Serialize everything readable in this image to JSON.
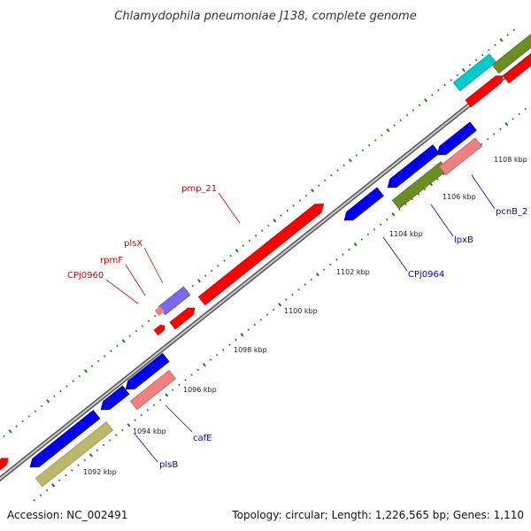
{
  "title": "Chlamydophila pneumoniae J138, complete genome",
  "footer": {
    "accession": "Accession: NC_002491",
    "summary": "Topology: circular; Length: 1,226,565 bp; Genes: 1,110"
  },
  "ticks": [
    "1092 kbp",
    "1094 kbp",
    "1096 kbp",
    "1098 kbp",
    "1100 kbp",
    "1102 kbp",
    "1104 kbp",
    "1106 kbp",
    "1108 kbp"
  ],
  "genes": {
    "pmp_21": "pmp_21",
    "plsX": "plsX",
    "rpmF": "rpmF",
    "CPj0960": "CPj0960",
    "cafE": "cafE",
    "plsB": "plsB",
    "CPj0964": "CPj0964",
    "lpxB": "lpxB",
    "pcnB_2": "pcnB_2"
  },
  "colors": {
    "red": "#ff0000",
    "blue": "#0000ee",
    "pink": "#f08080",
    "olive": "#6b8e23",
    "khaki": "#bdb76b",
    "cyan": "#00cccc",
    "purple": "#7b68ee",
    "label_red": "#cc0000",
    "label_blue": "#0000cc",
    "tick_green": "#1f7a1f"
  }
}
